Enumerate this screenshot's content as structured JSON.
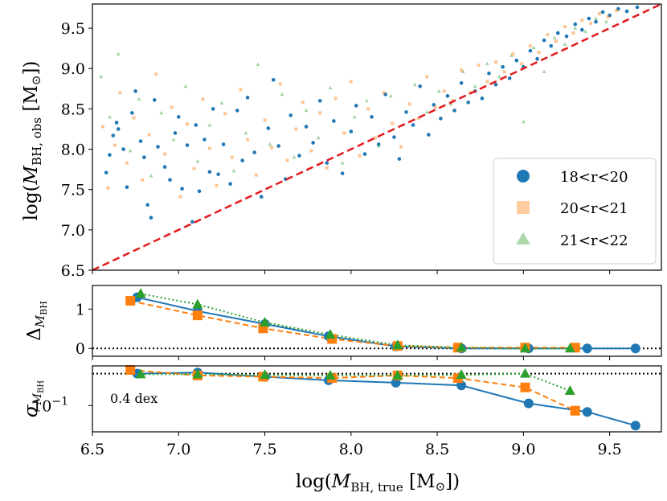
{
  "chart_data": [
    {
      "type": "scatter",
      "title": "",
      "ylabel": "log(M_BH,obs [M⊙])",
      "ylabel_parts": {
        "pre": "log(",
        "var": "M",
        "sub": "BH, obs",
        "post": " [M",
        "sun": "⊙",
        "end": "])"
      },
      "xlim": [
        6.5,
        9.8
      ],
      "ylim": [
        6.5,
        9.8
      ],
      "yticks": [
        "6.5",
        "7.0",
        "7.5",
        "8.0",
        "8.5",
        "9.0",
        "9.5"
      ],
      "legend_position": "lower-right",
      "series": [
        {
          "name": "18<r<20",
          "color": "#1f77b4",
          "marker": "circle",
          "points": [
            [
              6.58,
              7.71
            ],
            [
              6.6,
              7.93
            ],
            [
              6.62,
              8.17
            ],
            [
              6.64,
              8.33
            ],
            [
              6.65,
              8.25
            ],
            [
              6.68,
              8.0
            ],
            [
              6.7,
              7.53
            ],
            [
              6.73,
              8.45
            ],
            [
              6.75,
              8.72
            ],
            [
              6.78,
              8.1
            ],
            [
              6.8,
              7.9
            ],
            [
              6.82,
              7.31
            ],
            [
              6.84,
              7.15
            ],
            [
              6.86,
              8.61
            ],
            [
              6.88,
              8.03
            ],
            [
              6.92,
              7.78
            ],
            [
              6.95,
              7.62
            ],
            [
              6.98,
              8.2
            ],
            [
              7.0,
              8.4
            ],
            [
              7.02,
              7.51
            ],
            [
              7.05,
              8.05
            ],
            [
              7.08,
              7.1
            ],
            [
              7.1,
              8.3
            ],
            [
              7.12,
              7.48
            ],
            [
              7.15,
              8.12
            ],
            [
              7.18,
              7.72
            ],
            [
              7.2,
              8.5
            ],
            [
              7.23,
              7.69
            ],
            [
              7.26,
              8.06
            ],
            [
              7.3,
              7.57
            ],
            [
              7.34,
              8.48
            ],
            [
              7.37,
              7.86
            ],
            [
              7.4,
              8.64
            ],
            [
              7.44,
              7.96
            ],
            [
              7.48,
              7.41
            ],
            [
              7.52,
              8.26
            ],
            [
              7.55,
              8.86
            ],
            [
              7.58,
              8.04
            ],
            [
              7.62,
              7.63
            ],
            [
              7.65,
              8.42
            ],
            [
              7.7,
              7.92
            ],
            [
              7.74,
              8.28
            ],
            [
              7.78,
              8.08
            ],
            [
              7.82,
              8.6
            ],
            [
              7.86,
              7.83
            ],
            [
              7.9,
              8.35
            ],
            [
              7.95,
              7.7
            ],
            [
              8.0,
              8.22
            ],
            [
              8.03,
              8.54
            ],
            [
              8.08,
              7.94
            ],
            [
              8.12,
              8.4
            ],
            [
              8.16,
              8.06
            ],
            [
              8.2,
              8.68
            ],
            [
              8.25,
              8.15
            ],
            [
              8.28,
              7.88
            ],
            [
              8.32,
              8.46
            ],
            [
              8.36,
              8.3
            ],
            [
              8.4,
              8.78
            ],
            [
              8.45,
              8.18
            ],
            [
              8.48,
              8.55
            ],
            [
              8.52,
              8.38
            ],
            [
              8.56,
              8.66
            ],
            [
              8.6,
              8.48
            ],
            [
              8.64,
              8.82
            ],
            [
              8.68,
              8.58
            ],
            [
              8.72,
              8.72
            ],
            [
              8.76,
              8.63
            ],
            [
              8.8,
              8.94
            ],
            [
              8.84,
              8.8
            ],
            [
              8.88,
              9.02
            ],
            [
              8.92,
              8.88
            ],
            [
              8.96,
              9.1
            ],
            [
              9.0,
              9.02
            ],
            [
              9.04,
              9.22
            ],
            [
              9.08,
              9.12
            ],
            [
              9.12,
              9.35
            ],
            [
              9.16,
              9.28
            ],
            [
              9.2,
              9.44
            ],
            [
              9.25,
              9.4
            ],
            [
              9.3,
              9.55
            ],
            [
              9.34,
              9.48
            ],
            [
              9.38,
              9.62
            ],
            [
              9.42,
              9.58
            ],
            [
              9.46,
              9.7
            ],
            [
              9.5,
              9.66
            ],
            [
              9.55,
              9.74
            ],
            [
              9.6,
              9.71
            ],
            [
              9.66,
              9.76
            ]
          ]
        },
        {
          "name": "20<r<21",
          "color": "#ff7f0e",
          "marker": "square",
          "points": [
            [
              6.56,
              8.28
            ],
            [
              6.59,
              7.52
            ],
            [
              6.63,
              8.05
            ],
            [
              6.66,
              8.7
            ],
            [
              6.7,
              7.83
            ],
            [
              6.74,
              8.39
            ],
            [
              6.79,
              7.62
            ],
            [
              6.83,
              8.18
            ],
            [
              6.87,
              8.93
            ],
            [
              6.92,
              7.94
            ],
            [
              6.96,
              8.52
            ],
            [
              7.01,
              7.41
            ],
            [
              7.05,
              8.31
            ],
            [
              7.09,
              7.76
            ],
            [
              7.14,
              8.62
            ],
            [
              7.18,
              8.01
            ],
            [
              7.22,
              7.55
            ],
            [
              7.27,
              8.44
            ],
            [
              7.31,
              7.9
            ],
            [
              7.36,
              8.74
            ],
            [
              7.4,
              8.12
            ],
            [
              7.45,
              7.68
            ],
            [
              7.5,
              8.36
            ],
            [
              7.54,
              8.02
            ],
            [
              7.59,
              8.81
            ],
            [
              7.63,
              7.86
            ],
            [
              7.68,
              8.25
            ],
            [
              7.72,
              8.58
            ],
            [
              7.77,
              7.98
            ],
            [
              7.82,
              8.45
            ],
            [
              7.86,
              7.77
            ],
            [
              7.91,
              8.63
            ],
            [
              7.96,
              8.2
            ],
            [
              8.0,
              8.84
            ],
            [
              8.05,
              7.92
            ],
            [
              8.1,
              8.5
            ],
            [
              8.14,
              8.14
            ],
            [
              8.19,
              8.7
            ],
            [
              8.24,
              8.32
            ],
            [
              8.29,
              8.03
            ],
            [
              8.34,
              8.56
            ],
            [
              8.39,
              8.38
            ],
            [
              8.44,
              8.9
            ],
            [
              8.49,
              8.52
            ],
            [
              8.54,
              8.72
            ],
            [
              8.59,
              8.6
            ],
            [
              8.64,
              8.98
            ],
            [
              8.69,
              8.7
            ],
            [
              8.74,
              9.04
            ],
            [
              8.79,
              8.84
            ],
            [
              8.84,
              9.08
            ],
            [
              8.89,
              8.96
            ],
            [
              8.94,
              9.18
            ],
            [
              8.99,
              9.06
            ],
            [
              9.04,
              9.28
            ],
            [
              9.09,
              9.2
            ],
            [
              9.14,
              9.42
            ],
            [
              9.19,
              9.34
            ],
            [
              9.24,
              9.52
            ],
            [
              9.29,
              9.44
            ],
            [
              9.34,
              9.6
            ],
            [
              9.39,
              9.56
            ],
            [
              9.44,
              9.68
            ],
            [
              9.49,
              9.64
            ],
            [
              9.54,
              9.72
            ]
          ]
        },
        {
          "name": "21<r<22",
          "color": "#2ca02c",
          "marker": "triangle",
          "points": [
            [
              6.55,
              8.9
            ],
            [
              6.6,
              8.4
            ],
            [
              6.65,
              9.18
            ],
            [
              6.72,
              7.98
            ],
            [
              6.77,
              8.62
            ],
            [
              6.84,
              7.67
            ],
            [
              6.9,
              8.45
            ],
            [
              6.97,
              8.12
            ],
            [
              7.04,
              8.78
            ],
            [
              7.11,
              7.85
            ],
            [
              7.18,
              8.3
            ],
            [
              7.25,
              8.57
            ],
            [
              7.32,
              7.73
            ],
            [
              7.39,
              8.2
            ],
            [
              7.46,
              9.05
            ],
            [
              7.53,
              8.06
            ],
            [
              7.6,
              8.68
            ],
            [
              7.67,
              7.9
            ],
            [
              7.74,
              8.48
            ],
            [
              7.81,
              8.14
            ],
            [
              7.88,
              8.76
            ],
            [
              7.95,
              7.83
            ],
            [
              8.02,
              8.4
            ],
            [
              8.09,
              8.6
            ],
            [
              8.16,
              8.04
            ],
            [
              8.23,
              8.66
            ],
            [
              8.3,
              8.3
            ],
            [
              8.37,
              8.8
            ],
            [
              8.44,
              8.46
            ],
            [
              8.51,
              8.72
            ],
            [
              8.58,
              8.56
            ],
            [
              8.65,
              8.96
            ],
            [
              8.72,
              8.78
            ],
            [
              8.79,
              9.06
            ],
            [
              8.86,
              8.9
            ],
            [
              8.93,
              9.16
            ],
            [
              9.0,
              8.34
            ],
            [
              9.06,
              9.26
            ],
            [
              9.12,
              8.96
            ],
            [
              9.18,
              9.38
            ],
            [
              9.24,
              9.3
            ],
            [
              9.3,
              9.5
            ],
            [
              9.36,
              9.46
            ],
            [
              9.42,
              9.62
            ],
            [
              9.48,
              9.58
            ]
          ]
        }
      ],
      "reference_line": {
        "x": [
          6.5,
          9.8
        ],
        "y": [
          6.5,
          9.8
        ],
        "style": "dashed",
        "color": "#e31a1c"
      }
    },
    {
      "type": "line",
      "ylabel_parts": {
        "pre": "Δ",
        "var": "M",
        "sub": "BH"
      },
      "xlim": [
        6.5,
        9.8
      ],
      "ylim": [
        -0.2,
        1.6
      ],
      "yticks": [
        {
          "value": 0,
          "label": "0"
        },
        {
          "value": 1,
          "label": "1"
        }
      ],
      "hline": {
        "y": 0,
        "style": "dotted",
        "color": "#000000"
      },
      "series": [
        {
          "name": "18<r<20",
          "color": "#1f77b4",
          "marker": "circle",
          "linestyle": "solid",
          "x": [
            6.76,
            7.11,
            7.5,
            7.87,
            8.26,
            8.64,
            9.03,
            9.37,
            9.65
          ],
          "y": [
            1.3,
            0.95,
            0.62,
            0.31,
            0.05,
            0.0,
            0.0,
            0.0,
            0.0
          ]
        },
        {
          "name": "20<r<21",
          "color": "#ff7f0e",
          "marker": "square",
          "linestyle": "dashed",
          "x": [
            6.72,
            7.11,
            7.49,
            7.89,
            8.27,
            8.62,
            9.01,
            9.3
          ],
          "y": [
            1.21,
            0.84,
            0.51,
            0.24,
            0.06,
            0.02,
            0.02,
            0.02
          ]
        },
        {
          "name": "21<r<22",
          "color": "#2ca02c",
          "marker": "triangle",
          "linestyle": "dotted",
          "x": [
            6.78,
            7.11,
            7.5,
            7.88,
            8.27,
            8.64,
            9.01,
            9.27
          ],
          "y": [
            1.39,
            1.12,
            0.66,
            0.35,
            0.08,
            0.02,
            0.0,
            0.0
          ]
        }
      ]
    },
    {
      "type": "line",
      "ylabel_parts": {
        "pre": "",
        "var": "σ",
        "sub": "M",
        "subsub": "BH"
      },
      "xlabel_parts": {
        "pre": "log(",
        "var": "M",
        "sub": "BH, true",
        "post": " [M",
        "sun": "⊙",
        "end": "])"
      },
      "xlim": [
        6.5,
        9.8
      ],
      "yscale": "log",
      "ylim": [
        0.032,
        0.56
      ],
      "yticks": [
        {
          "value": 0.1,
          "label": "10",
          "sup": "−1"
        }
      ],
      "xticks": [
        "6.5",
        "7.0",
        "7.5",
        "8.0",
        "8.5",
        "9.0",
        "9.5"
      ],
      "hline": {
        "y": 0.4,
        "style": "dotted",
        "color": "#000000"
      },
      "annotation": "0.4 dex",
      "series": [
        {
          "name": "18<r<20",
          "color": "#1f77b4",
          "marker": "circle",
          "linestyle": "solid",
          "x": [
            6.76,
            7.11,
            7.5,
            7.87,
            8.26,
            8.64,
            9.03,
            9.37,
            9.65
          ],
          "y": [
            0.4,
            0.42,
            0.35,
            0.3,
            0.27,
            0.24,
            0.11,
            0.076,
            0.042
          ]
        },
        {
          "name": "20<r<21",
          "color": "#ff7f0e",
          "marker": "square",
          "linestyle": "dashed",
          "x": [
            6.72,
            7.11,
            7.49,
            7.89,
            8.27,
            8.62,
            9.01,
            9.3
          ],
          "y": [
            0.47,
            0.37,
            0.35,
            0.33,
            0.37,
            0.33,
            0.22,
            0.08
          ]
        },
        {
          "name": "21<r<22",
          "color": "#2ca02c",
          "marker": "triangle",
          "linestyle": "dotted",
          "x": [
            6.78,
            7.11,
            7.5,
            7.88,
            8.27,
            8.64,
            9.01,
            9.27
          ],
          "y": [
            0.39,
            0.39,
            0.38,
            0.37,
            0.37,
            0.38,
            0.4,
            0.19
          ]
        }
      ]
    }
  ]
}
